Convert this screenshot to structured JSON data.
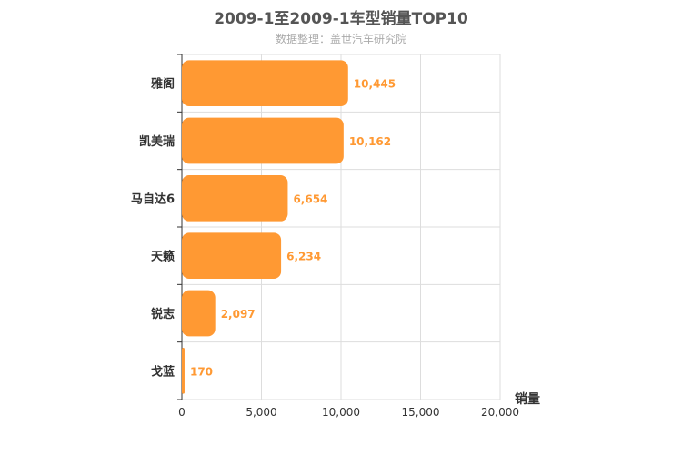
{
  "chart_data": {
    "type": "bar",
    "orientation": "horizontal",
    "title": "2009-1至2009-1车型销量TOP10",
    "subtitle": "数据整理：盖世汽车研究院",
    "categories": [
      "雅阁",
      "凯美瑞",
      "马自达6",
      "天籁",
      "锐志",
      "戈蓝"
    ],
    "values": [
      10445,
      10162,
      6654,
      6234,
      2097,
      170
    ],
    "data_labels": [
      "10,445",
      "10,162",
      "6,654",
      "6,234",
      "2,097",
      "170"
    ],
    "xlabel": "销量",
    "ylabel": "",
    "xlim": [
      0,
      20000
    ],
    "xticks": [
      0,
      5000,
      10000,
      15000,
      20000
    ],
    "xtick_labels": [
      "0",
      "5,000",
      "10,000",
      "15,000",
      "20,000"
    ],
    "grid": true,
    "bar_color": "#ff9933",
    "label_color": "#ff9933"
  }
}
